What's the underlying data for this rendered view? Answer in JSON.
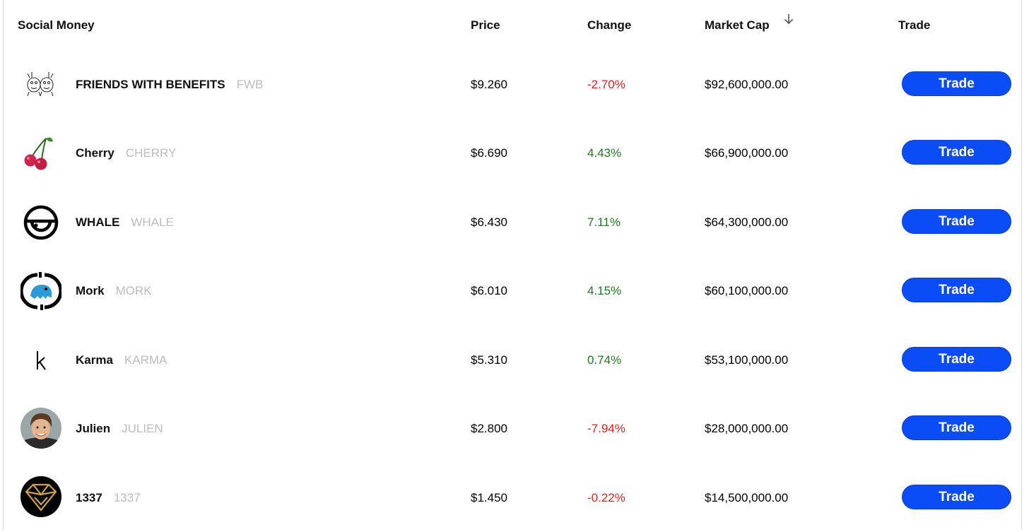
{
  "header": {
    "social_money": "Social Money",
    "price": "Price",
    "change": "Change",
    "market_cap": "Market Cap",
    "trade": "Trade",
    "sort_icon": "arrow-down-icon"
  },
  "rows": [
    {
      "name": "FRIENDS WITH BENEFITS",
      "symbol": "FWB",
      "price": "$9.260",
      "change": "-2.70%",
      "market_cap": "$92,600,000.00",
      "trade_label": "Trade",
      "icon": "fwb-logo-icon"
    },
    {
      "name": "Cherry",
      "symbol": "CHERRY",
      "price": "$6.690",
      "change": "4.43%",
      "market_cap": "$66,900,000.00",
      "trade_label": "Trade",
      "icon": "cherry-logo-icon"
    },
    {
      "name": "WHALE",
      "symbol": "WHALE",
      "price": "$6.430",
      "change": "7.11%",
      "market_cap": "$64,300,000.00",
      "trade_label": "Trade",
      "icon": "whale-logo-icon"
    },
    {
      "name": "Mork",
      "symbol": "MORK",
      "price": "$6.010",
      "change": "4.15%",
      "market_cap": "$60,100,000.00",
      "trade_label": "Trade",
      "icon": "mork-logo-icon"
    },
    {
      "name": "Karma",
      "symbol": "KARMA",
      "price": "$5.310",
      "change": "0.74%",
      "market_cap": "$53,100,000.00",
      "trade_label": "Trade",
      "icon": "karma-logo-icon"
    },
    {
      "name": "Julien",
      "symbol": "JULIEN",
      "price": "$2.800",
      "change": "-7.94%",
      "market_cap": "$28,000,000.00",
      "trade_label": "Trade",
      "icon": "julien-avatar"
    },
    {
      "name": "1337",
      "symbol": "1337",
      "price": "$1.450",
      "change": "-0.22%",
      "market_cap": "$14,500,000.00",
      "trade_label": "Trade",
      "icon": "1337-logo-icon"
    }
  ],
  "colors": {
    "trade_button": "#0a4cf5",
    "negative": "#e0211d",
    "positive": "#1f7a1f",
    "symbol": "#bdbdbd"
  }
}
